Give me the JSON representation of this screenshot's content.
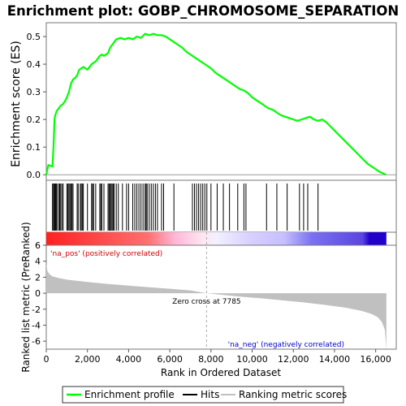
{
  "chart_data": {
    "type": "line",
    "title": "Enrichment plot: GOBP_CHROMOSOME_SEPARATION",
    "top_panel": {
      "ylabel": "Enrichment score (ES)",
      "ylim": [
        -0.02,
        0.55
      ],
      "yticks": [
        "0.0",
        "0.1",
        "0.2",
        "0.3",
        "0.4",
        "0.5"
      ],
      "series_name": "Enrichment profile",
      "line_color": "#00ff00",
      "x": [
        0,
        100,
        300,
        350,
        400,
        420,
        500,
        600,
        700,
        800,
        900,
        1000,
        1100,
        1200,
        1300,
        1400,
        1500,
        1600,
        1800,
        2000,
        2200,
        2400,
        2600,
        2700,
        2800,
        3000,
        3100,
        3200,
        3300,
        3400,
        3600,
        3800,
        4000,
        4200,
        4400,
        4600,
        4800,
        5000,
        5200,
        5400,
        5600,
        5800,
        6000,
        6200,
        6400,
        6600,
        6800,
        7000,
        7200,
        7400,
        7600,
        7800,
        8000,
        8200,
        8400,
        8600,
        8800,
        9000,
        9200,
        9400,
        9600,
        9800,
        10000,
        10200,
        10400,
        10600,
        10800,
        11000,
        11200,
        11400,
        11600,
        11800,
        12000,
        12200,
        12400,
        12600,
        12800,
        13000,
        13200,
        13400,
        13600,
        13800,
        14000,
        14200,
        14400,
        14600,
        14800,
        15000,
        15200,
        15400,
        15600,
        15800,
        16000,
        16200,
        16500
      ],
      "y": [
        0.0,
        0.035,
        0.03,
        0.1,
        0.2,
        0.21,
        0.23,
        0.24,
        0.25,
        0.255,
        0.265,
        0.28,
        0.3,
        0.33,
        0.345,
        0.35,
        0.36,
        0.38,
        0.39,
        0.38,
        0.4,
        0.41,
        0.43,
        0.435,
        0.43,
        0.44,
        0.46,
        0.47,
        0.48,
        0.49,
        0.495,
        0.49,
        0.495,
        0.49,
        0.5,
        0.495,
        0.51,
        0.505,
        0.51,
        0.505,
        0.505,
        0.5,
        0.49,
        0.48,
        0.47,
        0.46,
        0.445,
        0.435,
        0.425,
        0.415,
        0.405,
        0.395,
        0.385,
        0.37,
        0.36,
        0.35,
        0.34,
        0.33,
        0.32,
        0.31,
        0.305,
        0.295,
        0.28,
        0.27,
        0.26,
        0.25,
        0.24,
        0.235,
        0.225,
        0.215,
        0.21,
        0.205,
        0.2,
        0.195,
        0.2,
        0.205,
        0.21,
        0.2,
        0.195,
        0.2,
        0.19,
        0.175,
        0.16,
        0.145,
        0.13,
        0.115,
        0.1,
        0.085,
        0.07,
        0.055,
        0.04,
        0.03,
        0.02,
        0.01,
        0.0
      ]
    },
    "hits": {
      "name": "Hits",
      "positions": [
        300,
        350,
        380,
        420,
        450,
        480,
        520,
        600,
        650,
        700,
        760,
        820,
        1000,
        1050,
        1100,
        1150,
        1200,
        1250,
        1300,
        1500,
        1550,
        1650,
        1700,
        1750,
        1800,
        2000,
        2200,
        2250,
        2300,
        2400,
        2600,
        2650,
        2700,
        2800,
        3000,
        3050,
        3100,
        3150,
        3200,
        3250,
        3300,
        3400,
        3500,
        3700,
        3900,
        4000,
        4200,
        4300,
        4400,
        4500,
        4600,
        4700,
        4800,
        4850,
        4900,
        5000,
        5100,
        5200,
        5300,
        5400,
        5600,
        5700,
        6200,
        7100,
        7200,
        7300,
        7400,
        7500,
        7600,
        7700,
        7800,
        8000,
        8300,
        8600,
        8900,
        9300,
        9600,
        9700,
        10700,
        11200,
        11700,
        12300,
        12500,
        12700,
        13200
      ]
    },
    "ranking": {
      "ylabel": "Ranked list metric (PreRanked)",
      "ylim": [
        -7,
        6
      ],
      "yticks": [
        "-6",
        "-4",
        "-2",
        "0",
        "2",
        "4",
        "6"
      ],
      "series_name": "Ranking metric scores",
      "x": [
        0,
        50,
        150,
        300,
        600,
        1000,
        2000,
        3000,
        4000,
        5000,
        6000,
        7000,
        7785,
        8500,
        9500,
        10500,
        11500,
        12500,
        13500,
        14500,
        15300,
        15800,
        16100,
        16300,
        16450,
        16520
      ],
      "y": [
        3.7,
        2.8,
        2.4,
        2.1,
        1.9,
        1.7,
        1.4,
        1.15,
        0.95,
        0.75,
        0.55,
        0.35,
        0.0,
        -0.2,
        -0.45,
        -0.65,
        -0.9,
        -1.15,
        -1.45,
        -1.8,
        -2.2,
        -2.6,
        -3.0,
        -3.6,
        -4.6,
        -7.0
      ],
      "zero_cross_label": "Zero cross at 7785",
      "pos_label": "'na_pos' (positively correlated)",
      "neg_label": "'na_neg' (negatively correlated)"
    },
    "xaxis": {
      "xlabel": "Rank in Ordered Dataset",
      "xlim": [
        0,
        17000
      ],
      "xticks": [
        "0",
        "2,000",
        "4,000",
        "6,000",
        "8,000",
        "10,000",
        "12,000",
        "14,000",
        "16,000"
      ]
    },
    "legend": {
      "placement": "bottom",
      "entries": [
        "Enrichment profile",
        "Hits",
        "Ranking metric scores"
      ]
    },
    "colors": {
      "profile": "#00ff00",
      "hit": "#000000",
      "ranking_fill": "#c0c0c0",
      "pos_text": "#cc0000",
      "neg_text": "#0000cc",
      "heat_red": "#ff0000",
      "heat_white": "#ffffff",
      "heat_blue": "#0000cc",
      "zero_line": "#aaaaaa"
    }
  }
}
